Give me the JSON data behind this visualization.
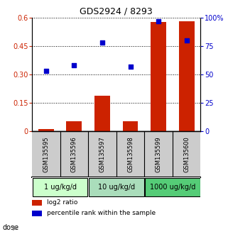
{
  "title": "GDS2924 / 8293",
  "samples": [
    "GSM135595",
    "GSM135596",
    "GSM135597",
    "GSM135598",
    "GSM135599",
    "GSM135600"
  ],
  "log2_ratio": [
    0.012,
    0.052,
    0.19,
    0.052,
    0.575,
    0.582
  ],
  "percentile_rank": [
    53,
    58,
    78,
    57,
    97,
    80
  ],
  "bar_color": "#cc2200",
  "dot_color": "#0000cc",
  "ylim_left": [
    0,
    0.6
  ],
  "ylim_right": [
    0,
    100
  ],
  "yticks_left": [
    0,
    0.15,
    0.3,
    0.45,
    0.6
  ],
  "yticks_right": [
    0,
    25,
    50,
    75,
    100
  ],
  "ytick_labels_left": [
    "0",
    "0.15",
    "0.30",
    "0.45",
    "0.6"
  ],
  "ytick_labels_right": [
    "0",
    "25",
    "50",
    "75",
    "100%"
  ],
  "dose_groups": [
    {
      "label": "1 ug/kg/d",
      "samples": [
        0,
        1
      ],
      "color": "#ccffcc"
    },
    {
      "label": "10 ug/kg/d",
      "samples": [
        2,
        3
      ],
      "color": "#aaddbb"
    },
    {
      "label": "1000 ug/kg/d",
      "samples": [
        4,
        5
      ],
      "color": "#55cc77"
    }
  ],
  "dose_label": "dose",
  "legend_bar_label": "log2 ratio",
  "legend_dot_label": "percentile rank within the sample",
  "background_color": "#ffffff",
  "plot_bg_color": "#ffffff",
  "sample_box_color": "#cccccc"
}
